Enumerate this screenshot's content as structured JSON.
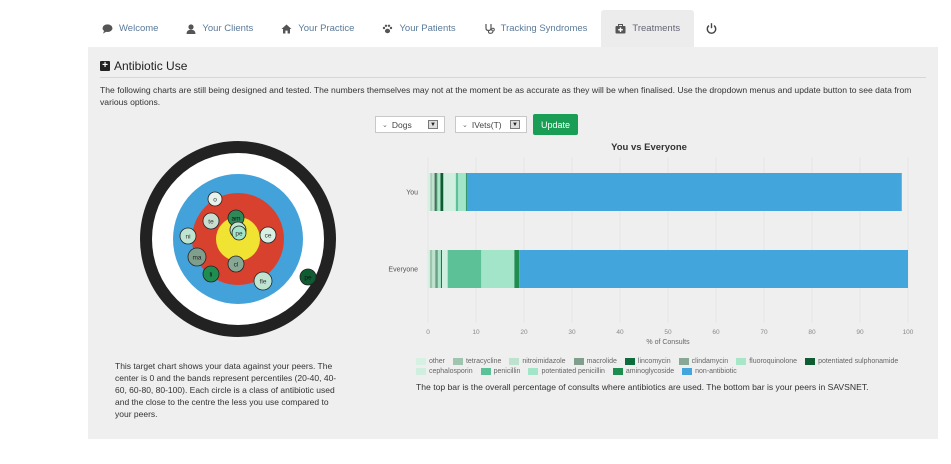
{
  "nav": {
    "items": [
      {
        "label": "Welcome",
        "icon": "comment-icon"
      },
      {
        "label": "Your Clients",
        "icon": "user-icon"
      },
      {
        "label": "Your Practice",
        "icon": "home-icon"
      },
      {
        "label": "Your Patients",
        "icon": "paw-icon"
      },
      {
        "label": "Tracking Syndromes",
        "icon": "stethoscope-icon"
      },
      {
        "label": "Treatments",
        "icon": "medkit-icon"
      }
    ],
    "active": "Treatments",
    "power_icon": "power-icon"
  },
  "panel": {
    "title": "Antibiotic Use",
    "intro": "The following charts are still being designed and tested. The numbers themselves may not at the moment be as accurate as they will be when finalised. Use the dropdown menus and update button to see data from various options."
  },
  "controls": {
    "species": "Dogs",
    "group": "IVets(T)",
    "update_label": "Update"
  },
  "target": {
    "labels": [
      "o",
      "te",
      "am",
      "ni",
      "ce",
      "fq",
      "pe",
      "ma",
      "cl",
      "li",
      "fle",
      "pe"
    ],
    "description": "This target chart shows your data against your peers. The center is 0 and the bands represent percentiles (20-40, 40-60, 60-80, 80-100). Each circle is a class of antibiotic used and the close to the centre the less you use compared to your peers."
  },
  "chart_data": {
    "type": "bar",
    "orientation": "horizontal",
    "stacked": true,
    "title": "You vs Everyone",
    "xlabel": "% of Consults",
    "ylabel": "",
    "xlim": [
      0,
      100
    ],
    "xticks": [
      0,
      10,
      20,
      30,
      40,
      50,
      60,
      70,
      80,
      90,
      100
    ],
    "categories": [
      "You",
      "Everyone"
    ],
    "series": [
      {
        "name": "other",
        "color": "#d6f0e3",
        "values": [
          0.5,
          0.4
        ]
      },
      {
        "name": "tetracycline",
        "color": "#9fc4b0",
        "values": [
          0.3,
          0.5
        ]
      },
      {
        "name": "nitroimidazole",
        "color": "#bde3cf",
        "values": [
          0.5,
          0.6
        ]
      },
      {
        "name": "macrolide",
        "color": "#7f9f8c",
        "values": [
          0.2,
          0.2
        ]
      },
      {
        "name": "lincomycin",
        "color": "#0e6b3b",
        "values": [
          0.3,
          0.1
        ]
      },
      {
        "name": "clindamycin",
        "color": "#88a896",
        "values": [
          0.2,
          0.3
        ]
      },
      {
        "name": "fluoroquinolone",
        "color": "#a8e6c8",
        "values": [
          0.6,
          0.6
        ]
      },
      {
        "name": "potentiated sulphonamide",
        "color": "#0f5c33",
        "values": [
          0.6,
          0.2
        ]
      },
      {
        "name": "cephalosporin",
        "color": "#d0efe0",
        "values": [
          2.6,
          1.2
        ]
      },
      {
        "name": "penicillin",
        "color": "#5cc196",
        "values": [
          0.5,
          7.0
        ]
      },
      {
        "name": "potentiated penicillin",
        "color": "#a3e5c8",
        "values": [
          1.6,
          6.9
        ]
      },
      {
        "name": "aminoglycoside",
        "color": "#1f8c50",
        "values": [
          0.2,
          1.0
        ]
      },
      {
        "name": "non-antibiotic",
        "color": "#42a6dc",
        "values": [
          90.6,
          81.0
        ]
      }
    ],
    "legend_position": "bottom",
    "caption": "The top bar is the overall percentage of consults where antibiotics are used. The bottom bar is your peers in SAVSNET."
  }
}
